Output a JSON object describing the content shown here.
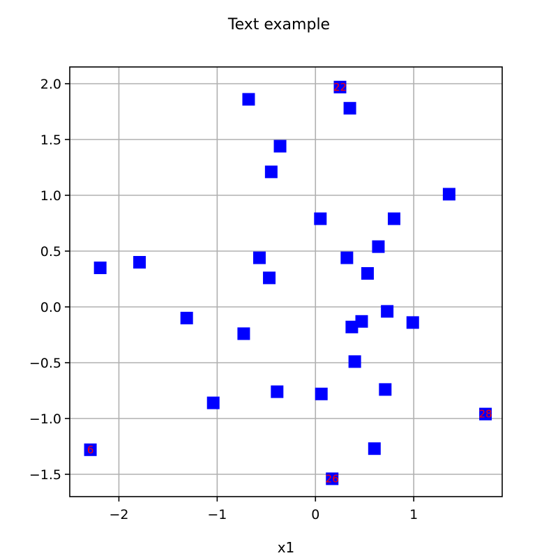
{
  "chart_data": {
    "type": "scatter",
    "title": "Text example",
    "xlabel": "x1",
    "ylabel": "",
    "xlim": [
      -2.5,
      1.9
    ],
    "ylim": [
      -1.7,
      2.15
    ],
    "xticks": [
      -2,
      -1,
      0,
      1
    ],
    "xtick_labels": [
      "−2",
      "−1",
      "0",
      "1"
    ],
    "yticks": [
      -1.5,
      -1.0,
      -0.5,
      0.0,
      0.5,
      1.0,
      1.5,
      2.0
    ],
    "ytick_labels": [
      "−1.5",
      "−1.0",
      "−0.5",
      "0.0",
      "0.5",
      "1.0",
      "1.5",
      "2.0"
    ],
    "grid": true,
    "marker": "square",
    "marker_color": "#0000ff",
    "label_color": "#ff0000",
    "points": [
      {
        "x": 0.25,
        "y": 1.97
      },
      {
        "x": 0.35,
        "y": 1.78
      },
      {
        "x": -0.68,
        "y": 1.86
      },
      {
        "x": -0.36,
        "y": 1.44
      },
      {
        "x": -0.45,
        "y": 1.21
      },
      {
        "x": 1.36,
        "y": 1.01
      },
      {
        "x": 0.05,
        "y": 0.79
      },
      {
        "x": 0.8,
        "y": 0.79
      },
      {
        "x": 0.64,
        "y": 0.54
      },
      {
        "x": 0.32,
        "y": 0.44
      },
      {
        "x": -0.57,
        "y": 0.44
      },
      {
        "x": -2.19,
        "y": 0.35
      },
      {
        "x": -1.79,
        "y": 0.4
      },
      {
        "x": -0.47,
        "y": 0.26
      },
      {
        "x": 0.53,
        "y": 0.3
      },
      {
        "x": -1.31,
        "y": -0.1
      },
      {
        "x": 0.73,
        "y": -0.04
      },
      {
        "x": 0.99,
        "y": -0.14
      },
      {
        "x": 0.47,
        "y": -0.13
      },
      {
        "x": 0.37,
        "y": -0.18
      },
      {
        "x": -0.73,
        "y": -0.24
      },
      {
        "x": 0.4,
        "y": -0.49
      },
      {
        "x": -1.04,
        "y": -0.86
      },
      {
        "x": -0.39,
        "y": -0.76
      },
      {
        "x": 0.06,
        "y": -0.78
      },
      {
        "x": 0.71,
        "y": -0.74
      },
      {
        "x": 1.73,
        "y": -0.96
      },
      {
        "x": -2.29,
        "y": -1.28
      },
      {
        "x": 0.6,
        "y": -1.27
      },
      {
        "x": 0.17,
        "y": -1.54
      }
    ],
    "annotations": [
      {
        "text": "22",
        "x": 0.25,
        "y": 1.97
      },
      {
        "text": "28",
        "x": 1.73,
        "y": -0.96
      },
      {
        "text": "6",
        "x": -2.29,
        "y": -1.28
      },
      {
        "text": "26",
        "x": 0.17,
        "y": -1.54
      }
    ]
  }
}
